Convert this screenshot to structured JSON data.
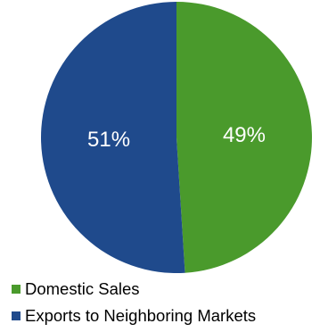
{
  "chart_data": {
    "type": "pie",
    "title": "",
    "slices": [
      {
        "label": "Domestic Sales",
        "value": 49,
        "value_label": "49%",
        "color": "#4a9a2c"
      },
      {
        "label": "Exports to Neighboring Markets",
        "value": 51,
        "value_label": "51%",
        "color": "#1f4a8c"
      }
    ],
    "start_angle_deg": 0,
    "direction": "clockwise",
    "label_color": "#ffffff",
    "legend_placement": "bottom-left"
  }
}
